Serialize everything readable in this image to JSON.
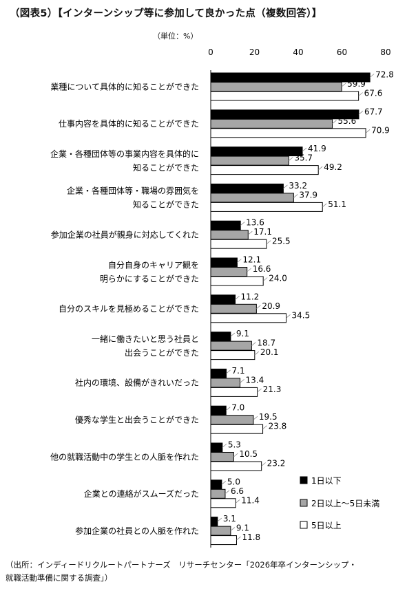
{
  "title": "（図表5）【インターンシップ等に参加して良かった点（複数回答）】",
  "unit": "（単位：%）",
  "source_line1": "（出所：インディードリクルートパートナーズ　リサーチセンター「2026年卒インターンシップ・",
  "source_line2": "就職活動準備に関する調査」）",
  "colors": {
    "series1": "#000000",
    "series2": "#a6a6a6",
    "series3": "#ffffff",
    "stroke": "#000000"
  },
  "chart_data": {
    "type": "bar",
    "orientation": "horizontal",
    "xlim": [
      0,
      80
    ],
    "x_ticks": [
      "0",
      "20",
      "40",
      "60",
      "80"
    ],
    "grid": false,
    "legend_position": "bottom-right",
    "categories": [
      [
        "業種について具体的に知ることができた"
      ],
      [
        "仕事内容を具体的に知ることができた"
      ],
      [
        "企業・各種団体等の事業内容を具体的に",
        "知ることができた"
      ],
      [
        "企業・各種団体等・職場の雰囲気を",
        "知ることができた"
      ],
      [
        "参加企業の社員が親身に対応してくれた"
      ],
      [
        "自分自身のキャリア観を",
        "明らかにすることができた"
      ],
      [
        "自分のスキルを見極めることができた"
      ],
      [
        "一緒に働きたいと思う社員と",
        "出会うことができた"
      ],
      [
        "社内の環境、設備がきれいだった"
      ],
      [
        "優秀な学生と出会うことができた"
      ],
      [
        "他の就職活動中の学生との人脈を作れた"
      ],
      [
        "企業との連絡がスムーズだった"
      ],
      [
        "参加企業の社員との人脈を作れた"
      ]
    ],
    "series": [
      {
        "name": "1日以下",
        "values": [
          72.8,
          67.7,
          41.9,
          33.2,
          13.6,
          12.1,
          11.2,
          9.1,
          7.1,
          7.0,
          5.3,
          5.0,
          3.1
        ],
        "labels": [
          "72.8",
          "67.7",
          "41.9",
          "33.2",
          "13.6",
          "12.1",
          "11.2",
          "9.1",
          "7.1",
          "7.0",
          "5.3",
          "5.0",
          "3.1"
        ]
      },
      {
        "name": "2日以上～5日未満",
        "values": [
          59.9,
          55.6,
          35.7,
          37.9,
          17.1,
          16.6,
          20.9,
          18.7,
          13.4,
          19.5,
          10.5,
          6.6,
          9.1
        ],
        "labels": [
          "59.9",
          "55.6",
          "35.7",
          "37.9",
          "17.1",
          "16.6",
          "20.9",
          "18.7",
          "13.4",
          "19.5",
          "10.5",
          "6.6",
          "9.1"
        ]
      },
      {
        "name": "5日以上",
        "values": [
          67.6,
          70.9,
          49.2,
          51.1,
          25.5,
          24.0,
          34.5,
          20.1,
          21.3,
          23.8,
          23.2,
          11.4,
          11.8
        ],
        "labels": [
          "67.6",
          "70.9",
          "49.2",
          "51.1",
          "25.5",
          "24.0",
          "34.5",
          "20.1",
          "21.3",
          "23.8",
          "23.2",
          "11.4",
          "11.8"
        ]
      }
    ]
  }
}
